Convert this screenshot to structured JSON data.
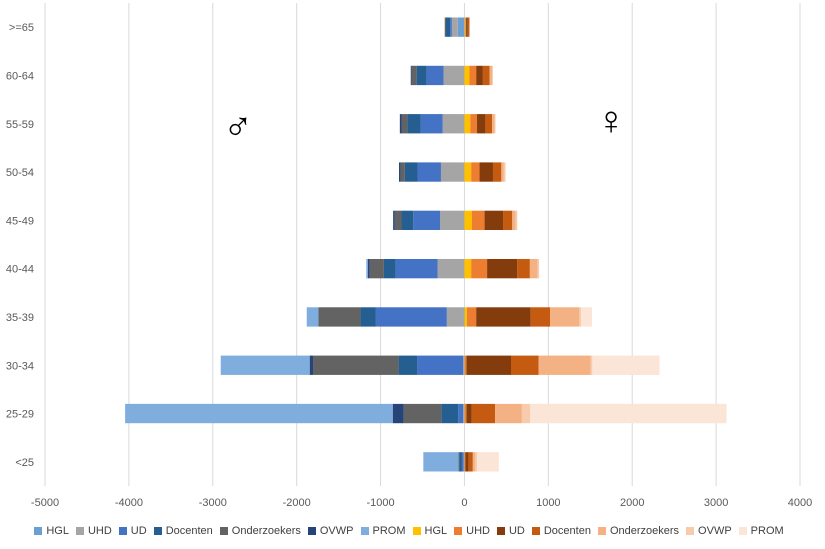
{
  "chart_data": {
    "type": "bar",
    "orientation": "horizontal",
    "stacked": true,
    "title": "",
    "xlabel": "",
    "ylabel": "",
    "xlim": [
      -5000,
      4000
    ],
    "x_ticks": [
      -5000,
      -4000,
      -3000,
      -2000,
      -1000,
      0,
      1000,
      2000,
      3000,
      4000
    ],
    "grid": true,
    "legend_position": "bottom",
    "annotations": {
      "male_symbol": "♂",
      "female_symbol": "♀"
    },
    "categories": [
      ">=65",
      "60-64",
      "55-59",
      "50-54",
      "45-49",
      "40-44",
      "35-39",
      "30-34",
      "25-29",
      "<25"
    ],
    "series": [
      {
        "name": "HGL",
        "group": "male",
        "color": "#6a9fd4",
        "values": [
          -80,
          0,
          0,
          0,
          0,
          0,
          -10,
          -5,
          -5,
          0
        ]
      },
      {
        "name": "UHD",
        "group": "male",
        "color": "#a5a5a5",
        "values": [
          -70,
          -250,
          -260,
          -280,
          -290,
          -320,
          -200,
          -10,
          -10,
          -10
        ]
      },
      {
        "name": "UD",
        "group": "male",
        "color": "#4472c4",
        "values": [
          -20,
          -200,
          -260,
          -280,
          -320,
          -500,
          -850,
          -550,
          -60,
          -20
        ]
      },
      {
        "name": "Docenten",
        "group": "male",
        "color": "#255e91",
        "values": [
          -50,
          -120,
          -160,
          -150,
          -140,
          -140,
          -180,
          -220,
          -200,
          -30
        ]
      },
      {
        "name": "Onderzoekers",
        "group": "male",
        "color": "#636363",
        "values": [
          -15,
          -60,
          -70,
          -50,
          -80,
          -170,
          -500,
          -1020,
          -450,
          -10
        ]
      },
      {
        "name": "OVWP",
        "group": "male",
        "color": "#264478",
        "values": [
          0,
          -10,
          -20,
          -20,
          -20,
          -20,
          0,
          -40,
          -130,
          0
        ]
      },
      {
        "name": "PROM",
        "group": "male",
        "color": "#7fadde",
        "values": [
          0,
          0,
          0,
          0,
          0,
          -20,
          -140,
          -1060,
          -3190,
          -420
        ]
      },
      {
        "name": "HGL",
        "group": "female",
        "color": "#ffc000",
        "values": [
          10,
          60,
          70,
          80,
          90,
          80,
          30,
          5,
          5,
          0
        ]
      },
      {
        "name": "UHD",
        "group": "female",
        "color": "#ed7d31",
        "values": [
          10,
          80,
          80,
          100,
          150,
          190,
          110,
          20,
          20,
          10
        ]
      },
      {
        "name": "UD",
        "group": "female",
        "color": "#843c0c",
        "values": [
          20,
          80,
          100,
          160,
          220,
          360,
          650,
          530,
          60,
          40
        ]
      },
      {
        "name": "Docenten",
        "group": "female",
        "color": "#c55a11",
        "values": [
          20,
          80,
          80,
          100,
          110,
          150,
          230,
          330,
          280,
          50
        ]
      },
      {
        "name": "Onderzoekers",
        "group": "female",
        "color": "#f4b183",
        "values": [
          0,
          30,
          30,
          30,
          40,
          90,
          350,
          620,
          320,
          30
        ]
      },
      {
        "name": "OVWP",
        "group": "female",
        "color": "#f8cbad",
        "values": [
          0,
          10,
          10,
          20,
          20,
          20,
          20,
          20,
          100,
          20
        ]
      },
      {
        "name": "PROM",
        "group": "female",
        "color": "#fbe5d6",
        "values": [
          0,
          0,
          0,
          0,
          0,
          0,
          130,
          800,
          2340,
          260
        ]
      }
    ]
  }
}
